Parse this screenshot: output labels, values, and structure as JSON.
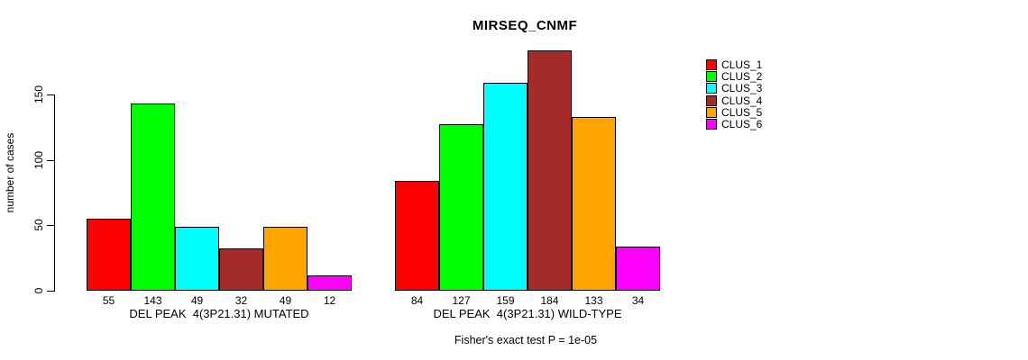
{
  "chart_data": {
    "type": "bar",
    "title": "MIRSEQ_CNMF",
    "ylabel": "number of cases",
    "xlabel": "",
    "ylim": [
      0,
      150
    ],
    "yticks": [
      0,
      50,
      100,
      150
    ],
    "grid": false,
    "legend_position": "right",
    "series_labels": [
      "CLUS_1",
      "CLUS_2",
      "CLUS_3",
      "CLUS_4",
      "CLUS_5",
      "CLUS_6"
    ],
    "colors": [
      "#FF0000",
      "#00FF00",
      "#00FFFF",
      "#A52A2A",
      "#FFA500",
      "#FF00FF"
    ],
    "bar_border_color": "#000000",
    "groups": [
      {
        "label": "DEL PEAK  4(3P21.31) MUTATED",
        "values": [
          55,
          143,
          49,
          32,
          49,
          12
        ]
      },
      {
        "label": "DEL PEAK  4(3P21.31) WILD-TYPE",
        "values": [
          84,
          127,
          159,
          184,
          133,
          34
        ]
      }
    ],
    "annotation": "Fisher's exact test P = 1e-05"
  }
}
